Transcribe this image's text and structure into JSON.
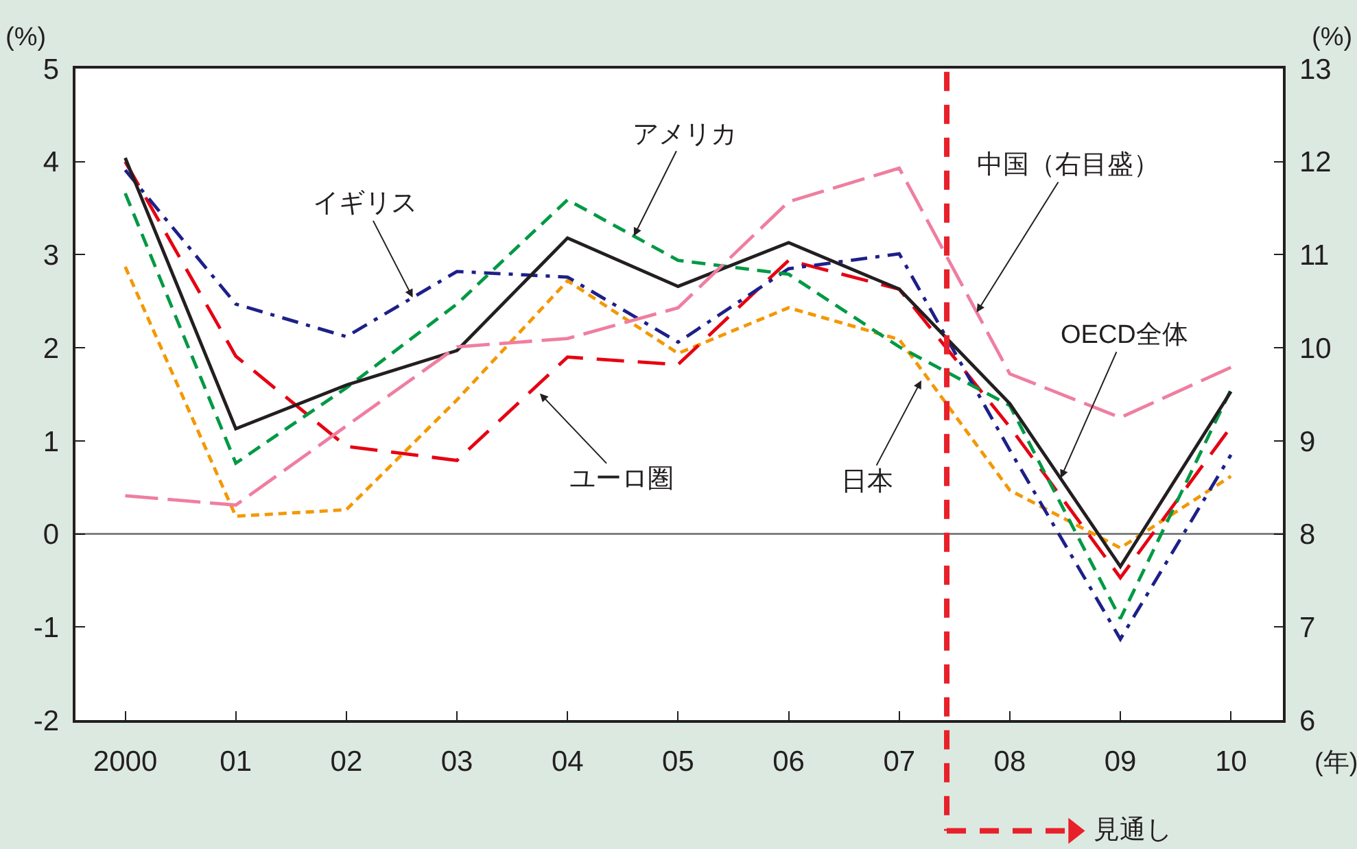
{
  "chart_data": {
    "type": "line",
    "ylabel": "(%)",
    "y2label": "(%)",
    "xlabel": "(年)",
    "x": [
      2000,
      2001,
      2002,
      2003,
      2004,
      2005,
      2006,
      2007,
      2008,
      2009,
      2010
    ],
    "xlim": [
      1999.55,
      2010.47
    ],
    "xticks": [
      {
        "value": 2000,
        "label": "2000"
      },
      {
        "value": 2001,
        "label": "01"
      },
      {
        "value": 2002,
        "label": "02"
      },
      {
        "value": 2003,
        "label": "03"
      },
      {
        "value": 2004,
        "label": "04"
      },
      {
        "value": 2005,
        "label": "05"
      },
      {
        "value": 2006,
        "label": "06"
      },
      {
        "value": 2007,
        "label": "07"
      },
      {
        "value": 2008,
        "label": "08"
      },
      {
        "value": 2009,
        "label": "09"
      },
      {
        "value": 2010,
        "label": "10"
      }
    ],
    "ylim": [
      -2,
      5
    ],
    "yticks": [
      -2,
      -1,
      0,
      1,
      2,
      3,
      4,
      5
    ],
    "y2lim": [
      6,
      13
    ],
    "y2ticks": [
      6,
      7,
      8,
      9,
      10,
      11,
      12,
      13
    ],
    "series": [
      {
        "color": "#ef7ea0",
        "axis": "y2",
        "line_style": "dashed",
        "values": [
          8.41,
          8.31,
          9.16,
          10.01,
          10.1,
          10.43,
          11.57,
          11.93,
          9.72,
          9.25,
          9.79
        ]
      },
      {
        "color": "#f39800",
        "line_style": "dashed",
        "values": [
          2.87,
          0.19,
          0.26,
          1.44,
          2.72,
          1.94,
          2.43,
          2.09,
          0.47,
          -0.15,
          0.62
        ]
      },
      {
        "color": "#e60012",
        "line_style": "dashed",
        "values": [
          4.0,
          1.91,
          0.94,
          0.79,
          1.9,
          1.82,
          2.94,
          2.63,
          1.15,
          -0.47,
          1.15
        ]
      },
      {
        "color": "#1d2088",
        "line_style": "dashed",
        "values": [
          3.91,
          2.47,
          2.12,
          2.82,
          2.76,
          2.06,
          2.85,
          3.01,
          0.9,
          -1.13,
          0.85
        ]
      },
      {
        "color": "#009944",
        "line_style": "dashed",
        "values": [
          3.66,
          0.76,
          1.57,
          2.47,
          3.59,
          2.94,
          2.79,
          2.01,
          1.38,
          -0.91,
          1.55
        ]
      },
      {
        "color": "#231f20",
        "line_style": "solid",
        "values": [
          4.04,
          1.13,
          1.6,
          1.97,
          3.18,
          2.66,
          3.13,
          2.63,
          1.4,
          -0.35,
          1.53
        ]
      }
    ],
    "ref_lines": [
      {
        "axis": "y",
        "value": 0,
        "color": "#808080"
      },
      {
        "axis": "x",
        "value": 2007.43,
        "label": "見通し",
        "color": "#e8202a",
        "line_style": "dashed"
      }
    ],
    "annotations": [
      {
        "text": "イギリス",
        "x": 2002.6,
        "y": 2.54
      },
      {
        "text": "アメリカ",
        "x": 2004.6,
        "y": 3.2
      },
      {
        "text": "中国（右目盛）",
        "x": 2007.7,
        "y": 2.38
      },
      {
        "text": "ユーロ圏",
        "x": 2003.75,
        "y": 1.51
      },
      {
        "text": "日本",
        "x": 2007.2,
        "y": 1.65
      },
      {
        "text": "OECD全体",
        "x": 2008.46,
        "y": 0.6
      }
    ],
    "grid": false,
    "marker": "none"
  }
}
